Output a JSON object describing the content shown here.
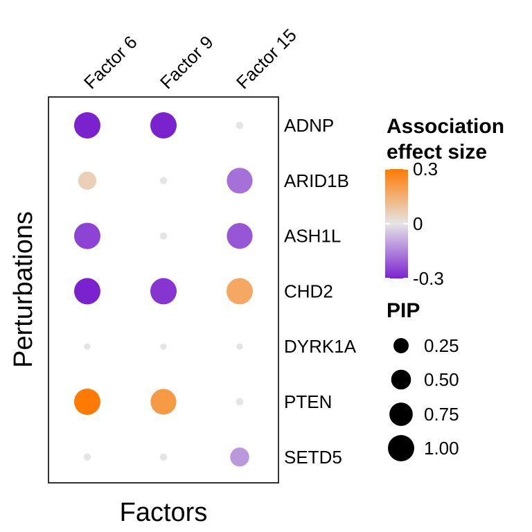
{
  "chart_data": {
    "type": "dot-matrix",
    "xlabel": "Factors",
    "ylabel": "Perturbations",
    "categories_x": [
      "Factor 6",
      "Factor 9",
      "Factor 15"
    ],
    "categories_y": [
      "ADNP",
      "ARID1B",
      "ASH1L",
      "CHD2",
      "DYRK1A",
      "PTEN",
      "SETD5"
    ],
    "points": [
      {
        "perturbation": "ADNP",
        "factor": "Factor 6",
        "effect": -0.3,
        "pip": 1.0
      },
      {
        "perturbation": "ADNP",
        "factor": "Factor 9",
        "effect": -0.3,
        "pip": 1.0
      },
      {
        "perturbation": "ADNP",
        "factor": "Factor 15",
        "effect": 0.0,
        "pip": 0.02
      },
      {
        "perturbation": "ARID1B",
        "factor": "Factor 6",
        "effect": 0.06,
        "pip": 0.4
      },
      {
        "perturbation": "ARID1B",
        "factor": "Factor 9",
        "effect": 0.0,
        "pip": 0.02
      },
      {
        "perturbation": "ARID1B",
        "factor": "Factor 15",
        "effect": -0.18,
        "pip": 0.95
      },
      {
        "perturbation": "ASH1L",
        "factor": "Factor 6",
        "effect": -0.25,
        "pip": 1.0
      },
      {
        "perturbation": "ASH1L",
        "factor": "Factor 9",
        "effect": 0.0,
        "pip": 0.02
      },
      {
        "perturbation": "ASH1L",
        "factor": "Factor 15",
        "effect": -0.22,
        "pip": 0.95
      },
      {
        "perturbation": "CHD2",
        "factor": "Factor 6",
        "effect": -0.3,
        "pip": 1.0
      },
      {
        "perturbation": "CHD2",
        "factor": "Factor 9",
        "effect": -0.27,
        "pip": 1.0
      },
      {
        "perturbation": "CHD2",
        "factor": "Factor 15",
        "effect": 0.17,
        "pip": 1.0
      },
      {
        "perturbation": "DYRK1A",
        "factor": "Factor 6",
        "effect": 0.0,
        "pip": 0.01
      },
      {
        "perturbation": "DYRK1A",
        "factor": "Factor 9",
        "effect": 0.0,
        "pip": 0.01
      },
      {
        "perturbation": "DYRK1A",
        "factor": "Factor 15",
        "effect": 0.0,
        "pip": 0.01
      },
      {
        "perturbation": "PTEN",
        "factor": "Factor 6",
        "effect": 0.3,
        "pip": 1.0
      },
      {
        "perturbation": "PTEN",
        "factor": "Factor 9",
        "effect": 0.21,
        "pip": 0.95
      },
      {
        "perturbation": "PTEN",
        "factor": "Factor 15",
        "effect": 0.0,
        "pip": 0.02
      },
      {
        "perturbation": "SETD5",
        "factor": "Factor 6",
        "effect": 0.0,
        "pip": 0.02
      },
      {
        "perturbation": "SETD5",
        "factor": "Factor 9",
        "effect": 0.0,
        "pip": 0.02
      },
      {
        "perturbation": "SETD5",
        "factor": "Factor 15",
        "effect": -0.12,
        "pip": 0.45
      }
    ],
    "legend": {
      "color_title": [
        "Association",
        "effect size"
      ],
      "color_range": [
        -0.3,
        0.3
      ],
      "color_ticks": [
        {
          "value": 0.3,
          "label": "0.3"
        },
        {
          "value": 0,
          "label": "0"
        },
        {
          "value": -0.3,
          "label": "-0.3"
        }
      ],
      "color_low": "#7b22cf",
      "color_mid": "#e5e5e5",
      "color_high": "#ff7a00",
      "size_title": "PIP",
      "size_breaks": [
        {
          "value": 0.25,
          "label": "0.25"
        },
        {
          "value": 0.5,
          "label": "0.50"
        },
        {
          "value": 0.75,
          "label": "0.75"
        },
        {
          "value": 1.0,
          "label": "1.00"
        }
      ]
    }
  }
}
